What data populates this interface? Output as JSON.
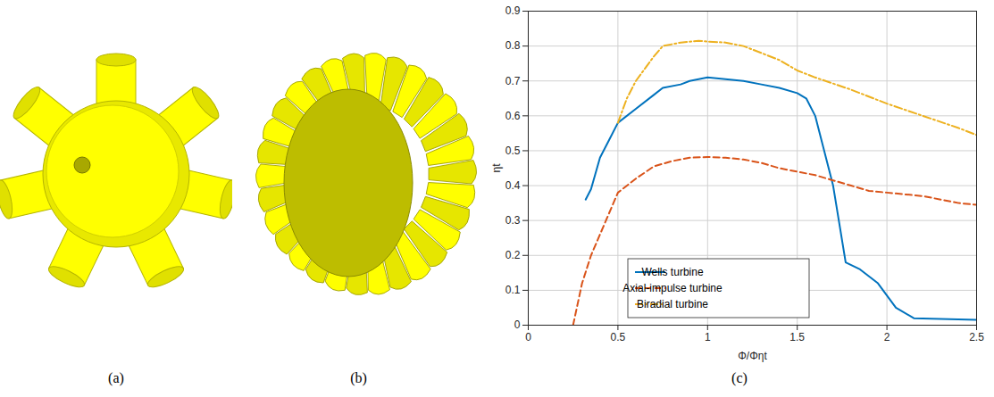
{
  "panel_labels": [
    "(a)",
    "(b)",
    "(c)"
  ],
  "chart_data": {
    "type": "line",
    "x_label": "Φ/Φηt",
    "y_label": "ηt",
    "xlim": [
      0,
      2.5
    ],
    "xticks": [
      0,
      0.5,
      1,
      1.5,
      2,
      2.5
    ],
    "ylim": [
      0,
      0.9
    ],
    "yticks": [
      0,
      0.1,
      0.2,
      0.3,
      0.4,
      0.5,
      0.6,
      0.7,
      0.8,
      0.9
    ],
    "grid": true,
    "legend": "lower center",
    "series": [
      {
        "name": "Wells turbine",
        "color": "#0072BD",
        "line_style": "solid",
        "x": [
          0.32,
          0.35,
          0.4,
          0.45,
          0.5,
          0.6,
          0.7,
          0.75,
          0.85,
          0.9,
          1.0,
          1.1,
          1.2,
          1.3,
          1.4,
          1.5,
          1.55,
          1.6,
          1.7,
          1.77,
          1.85,
          1.95,
          2.05,
          2.15,
          2.5
        ],
        "values": [
          0.36,
          0.39,
          0.48,
          0.53,
          0.58,
          0.62,
          0.66,
          0.68,
          0.69,
          0.7,
          0.71,
          0.705,
          0.7,
          0.69,
          0.68,
          0.665,
          0.65,
          0.6,
          0.4,
          0.18,
          0.16,
          0.12,
          0.05,
          0.02,
          0.015
        ]
      },
      {
        "name": "Axial-impulse turbine",
        "color": "#D95319",
        "line_style": "dashed",
        "x": [
          0.25,
          0.3,
          0.35,
          0.4,
          0.5,
          0.6,
          0.7,
          0.8,
          0.9,
          1.0,
          1.1,
          1.2,
          1.3,
          1.4,
          1.5,
          1.6,
          1.7,
          1.8,
          1.9,
          2.0,
          2.1,
          2.2,
          2.3,
          2.4,
          2.5
        ],
        "values": [
          0.0,
          0.12,
          0.2,
          0.26,
          0.38,
          0.42,
          0.455,
          0.47,
          0.48,
          0.482,
          0.48,
          0.475,
          0.465,
          0.45,
          0.44,
          0.43,
          0.415,
          0.4,
          0.385,
          0.38,
          0.375,
          0.37,
          0.36,
          0.35,
          0.345
        ]
      },
      {
        "name": "Biradial turbine",
        "color": "#EDB120",
        "line_style": "dashdot",
        "x": [
          0.5,
          0.55,
          0.6,
          0.7,
          0.75,
          0.85,
          0.95,
          1.0,
          1.1,
          1.2,
          1.3,
          1.4,
          1.5,
          1.6,
          1.8,
          2.0,
          2.2,
          2.4,
          2.5
        ],
        "values": [
          0.58,
          0.65,
          0.7,
          0.77,
          0.8,
          0.81,
          0.815,
          0.813,
          0.81,
          0.8,
          0.78,
          0.76,
          0.73,
          0.71,
          0.675,
          0.635,
          0.6,
          0.565,
          0.545
        ]
      }
    ]
  }
}
